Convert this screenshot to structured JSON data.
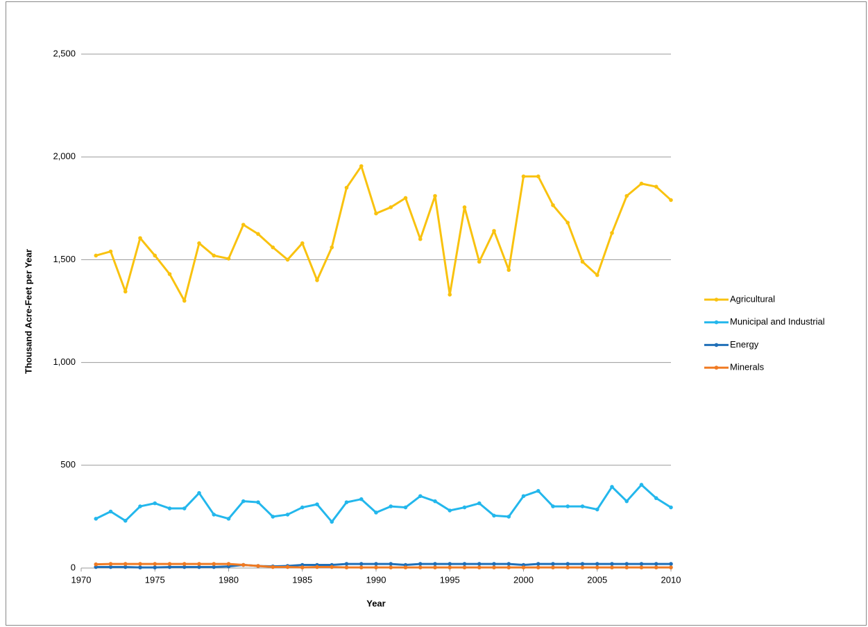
{
  "chart_data": {
    "type": "line",
    "x_label": "Year",
    "y_label": "Thousand Acre-Feet per Year",
    "x": [
      1971,
      1972,
      1973,
      1974,
      1975,
      1976,
      1977,
      1978,
      1979,
      1980,
      1981,
      1982,
      1983,
      1984,
      1985,
      1986,
      1987,
      1988,
      1989,
      1990,
      1991,
      1992,
      1993,
      1994,
      1995,
      1996,
      1997,
      1998,
      1999,
      2000,
      2001,
      2002,
      2003,
      2004,
      2005,
      2006,
      2007,
      2008,
      2009,
      2010
    ],
    "series": [
      {
        "name": "Agricultural",
        "color": "#f9c20f",
        "values": [
          1520,
          1540,
          1345,
          1605,
          1520,
          1430,
          1300,
          1580,
          1520,
          1505,
          1670,
          1625,
          1560,
          1500,
          1580,
          1400,
          1560,
          1850,
          1955,
          1725,
          1755,
          1800,
          1600,
          1810,
          1330,
          1755,
          1490,
          1640,
          1450,
          1905,
          1905,
          1765,
          1680,
          1490,
          1425,
          1630,
          1810,
          1870,
          1855,
          1790
        ]
      },
      {
        "name": "Municipal and Industrial",
        "color": "#23b7ec",
        "values": [
          240,
          275,
          230,
          300,
          315,
          290,
          290,
          365,
          260,
          240,
          325,
          320,
          250,
          260,
          295,
          310,
          225,
          320,
          335,
          270,
          300,
          295,
          350,
          325,
          280,
          295,
          315,
          255,
          250,
          350,
          375,
          300,
          300,
          300,
          285,
          395,
          325,
          405,
          340,
          295
        ]
      },
      {
        "name": "Energy",
        "color": "#1f6fb8",
        "values": [
          5,
          5,
          5,
          3,
          3,
          5,
          5,
          5,
          5,
          8,
          15,
          10,
          8,
          10,
          15,
          15,
          15,
          20,
          20,
          20,
          20,
          15,
          20,
          20,
          20,
          20,
          20,
          20,
          20,
          15,
          20,
          20,
          20,
          20,
          20,
          20,
          20,
          20,
          20,
          20
        ]
      },
      {
        "name": "Minerals",
        "color": "#f07a22",
        "values": [
          18,
          20,
          20,
          20,
          20,
          20,
          20,
          20,
          20,
          20,
          15,
          10,
          5,
          5,
          3,
          5,
          5,
          3,
          3,
          3,
          3,
          3,
          3,
          3,
          3,
          3,
          3,
          3,
          3,
          3,
          3,
          3,
          3,
          3,
          3,
          3,
          3,
          3,
          3,
          3
        ]
      }
    ],
    "xlim": [
      1970,
      2010
    ],
    "xticks": [
      1970,
      1975,
      1980,
      1985,
      1990,
      1995,
      2000,
      2005,
      2010
    ],
    "ylim": [
      0,
      2500
    ],
    "yticks": [
      0,
      500,
      {
        "value": 1000,
        "label": "1,000"
      },
      {
        "value": 1500,
        "label": "1,500"
      },
      {
        "value": 2000,
        "label": "2,000"
      },
      {
        "value": 2500,
        "label": "2,500"
      }
    ],
    "grid": true,
    "legend": "right"
  }
}
